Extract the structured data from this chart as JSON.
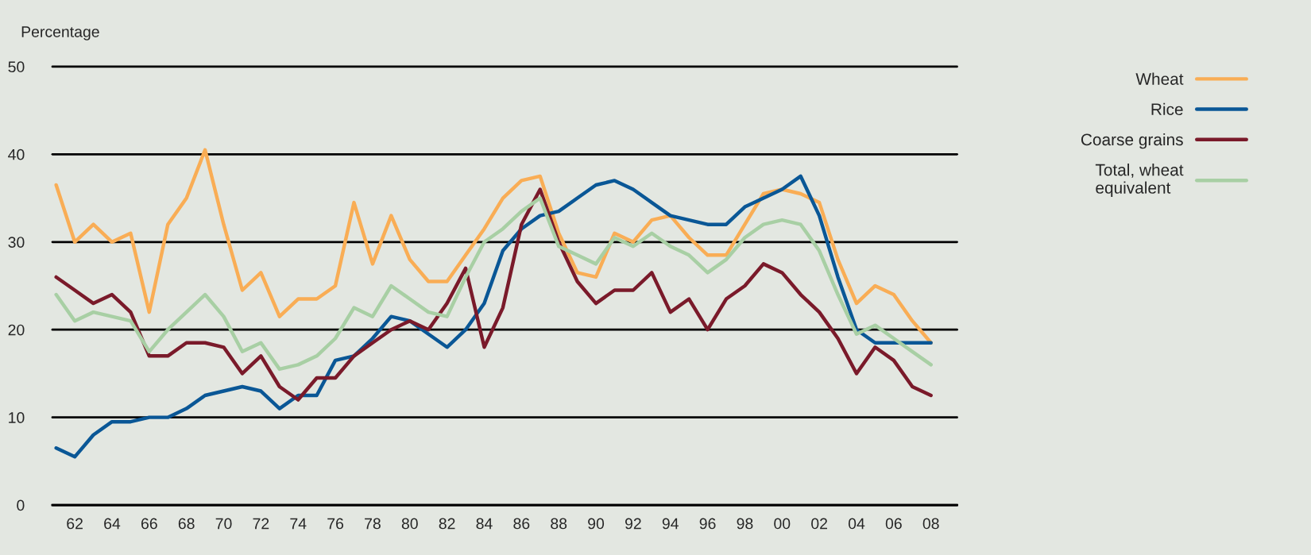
{
  "chart_data": {
    "type": "line",
    "ylabel": "Percentage",
    "x": [
      1961,
      1962,
      1963,
      1964,
      1965,
      1966,
      1967,
      1968,
      1969,
      1970,
      1971,
      1972,
      1973,
      1974,
      1975,
      1976,
      1977,
      1978,
      1979,
      1980,
      1981,
      1982,
      1983,
      1984,
      1985,
      1986,
      1987,
      1988,
      1989,
      1990,
      1991,
      1992,
      1993,
      1994,
      1995,
      1996,
      1997,
      1998,
      1999,
      2000,
      2001,
      2002,
      2003,
      2004,
      2005,
      2006,
      2007,
      2008
    ],
    "series": [
      {
        "name": "Wheat",
        "color": "#f9ad55",
        "values": [
          36.5,
          30,
          32,
          30,
          31,
          22,
          32,
          35,
          40.5,
          32,
          24.5,
          26.5,
          21.5,
          23.5,
          23.5,
          25,
          34.5,
          27.5,
          33,
          28,
          25.5,
          25.5,
          28.5,
          31.5,
          35,
          37,
          37.5,
          31,
          26.5,
          26,
          31,
          30,
          32.5,
          33,
          30.5,
          28.5,
          28.5,
          32,
          35.5,
          36,
          35.5,
          34.5,
          28,
          23,
          25,
          24,
          21,
          18.5
        ]
      },
      {
        "name": "Rice",
        "color": "#0a5796",
        "values": [
          6.5,
          5.5,
          8,
          9.5,
          9.5,
          10,
          10,
          11,
          12.5,
          13,
          13.5,
          13,
          11,
          12.5,
          12.5,
          16.5,
          17,
          19,
          21.5,
          21,
          19.5,
          18,
          20,
          23,
          29,
          31.5,
          33,
          33.5,
          35,
          36.5,
          37,
          36,
          34.5,
          33,
          32.5,
          32,
          32,
          34,
          35,
          36,
          37.5,
          33,
          26,
          20,
          18.5,
          18.5,
          18.5,
          18.5
        ]
      },
      {
        "name": "Coarse grains",
        "color": "#7a1a2a",
        "values": [
          26,
          24.5,
          23,
          24,
          22,
          17,
          17,
          18.5,
          18.5,
          18,
          15,
          17,
          13.5,
          12,
          14.5,
          14.5,
          17,
          18.5,
          20,
          21,
          20,
          23,
          27,
          18,
          22.5,
          32,
          36,
          30,
          25.5,
          23,
          24.5,
          24.5,
          26.5,
          22,
          23.5,
          20,
          23.5,
          25,
          27.5,
          26.5,
          24,
          22,
          19,
          15,
          18,
          16.5,
          13.5,
          12.5
        ]
      },
      {
        "name": "Total, wheat\nequivalent",
        "color": "#a8cfa4",
        "values": [
          24,
          21,
          22,
          21.5,
          21,
          17.5,
          20,
          22,
          24,
          21.5,
          17.5,
          18.5,
          15.5,
          16,
          17,
          19,
          22.5,
          21.5,
          25,
          23.5,
          22,
          21.5,
          26,
          30,
          31.5,
          33.5,
          35,
          29.5,
          28.5,
          27.5,
          30.5,
          29.5,
          31,
          29.5,
          28.5,
          26.5,
          28,
          30.5,
          32,
          32.5,
          32,
          29,
          24,
          19.5,
          20.5,
          19,
          17.5,
          16
        ]
      }
    ],
    "xlim": [
      1960.8,
      2009.4
    ],
    "xticks": [
      {
        "value": 1962,
        "label": "62"
      },
      {
        "value": 1964,
        "label": "64"
      },
      {
        "value": 1966,
        "label": "66"
      },
      {
        "value": 1968,
        "label": "68"
      },
      {
        "value": 1970,
        "label": "70"
      },
      {
        "value": 1972,
        "label": "72"
      },
      {
        "value": 1974,
        "label": "74"
      },
      {
        "value": 1976,
        "label": "76"
      },
      {
        "value": 1978,
        "label": "78"
      },
      {
        "value": 1980,
        "label": "80"
      },
      {
        "value": 1982,
        "label": "82"
      },
      {
        "value": 1984,
        "label": "84"
      },
      {
        "value": 1986,
        "label": "86"
      },
      {
        "value": 1988,
        "label": "88"
      },
      {
        "value": 1990,
        "label": "90"
      },
      {
        "value": 1992,
        "label": "92"
      },
      {
        "value": 1994,
        "label": "94"
      },
      {
        "value": 1996,
        "label": "96"
      },
      {
        "value": 1998,
        "label": "98"
      },
      {
        "value": 2000,
        "label": "00"
      },
      {
        "value": 2002,
        "label": "02"
      },
      {
        "value": 2004,
        "label": "04"
      },
      {
        "value": 2006,
        "label": "06"
      },
      {
        "value": 2008,
        "label": "08"
      }
    ],
    "ylim": [
      0,
      50
    ],
    "yticks": [
      0,
      10,
      20,
      30,
      40,
      50
    ],
    "grid": "y",
    "legend": "top right",
    "line_style": "solid",
    "marker": "none"
  }
}
